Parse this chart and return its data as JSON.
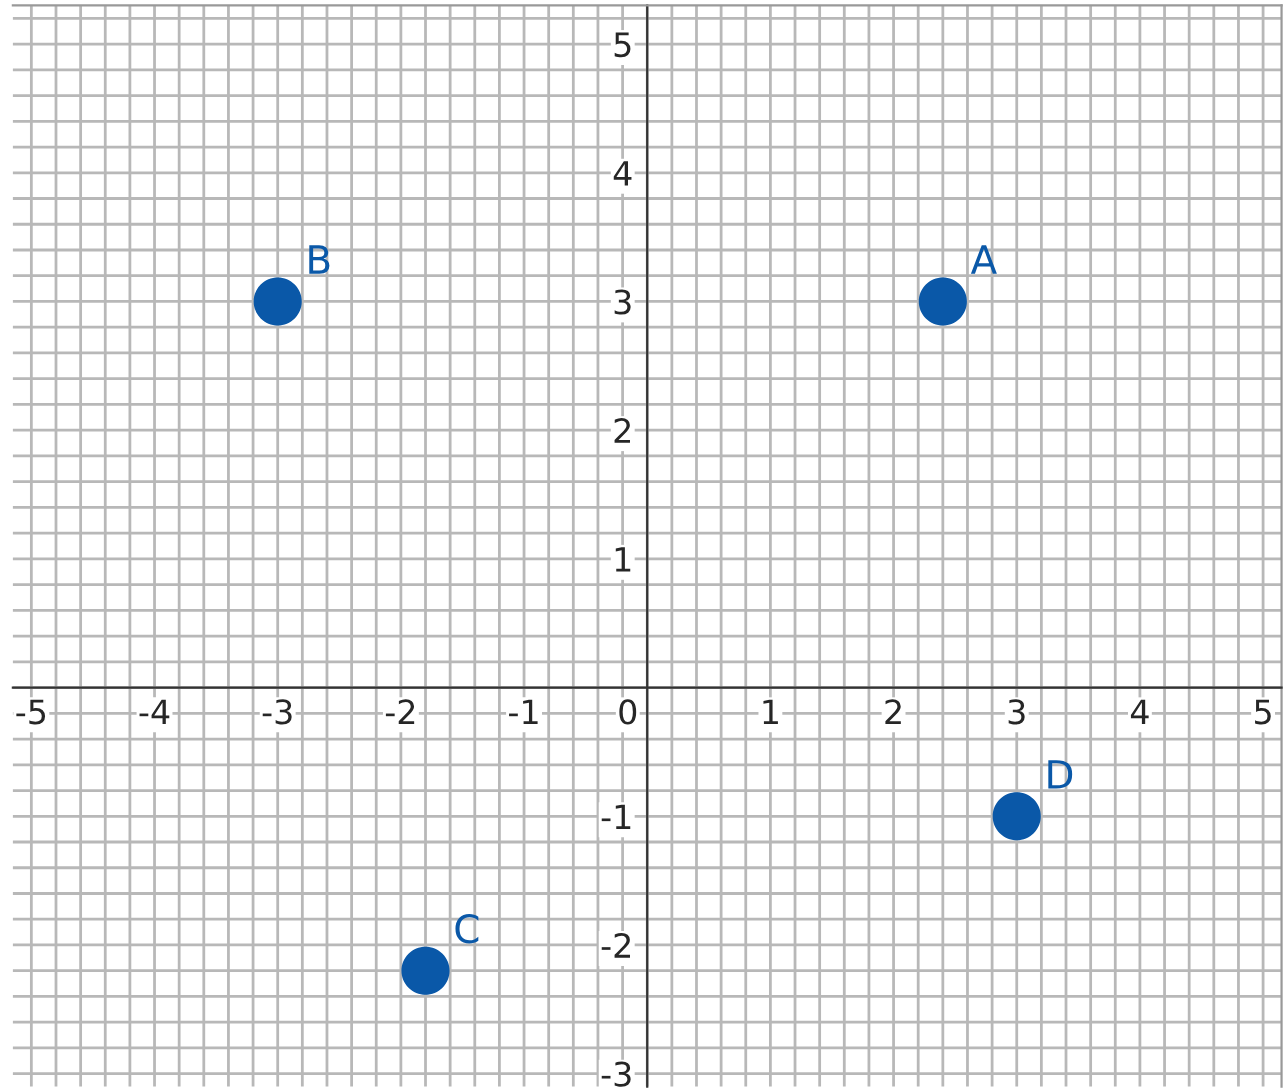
{
  "chart_data": {
    "type": "scatter",
    "x": [
      2.4,
      -3,
      -1.8,
      3
    ],
    "values": [
      3,
      3,
      -2.2,
      -1
    ],
    "color": "#0a58a8",
    "marker": "circle",
    "xlim": [
      -5.15,
      5.15
    ],
    "ylim": [
      -3.1,
      5.3
    ],
    "xticks": [
      -5,
      -4,
      -3,
      -2,
      -1,
      0,
      1,
      2,
      3,
      4,
      5
    ],
    "yticks": [
      -3,
      -2,
      -1,
      1,
      2,
      3,
      4,
      5
    ],
    "grid": true,
    "annotations": [
      {
        "text": "A",
        "x": 2.4,
        "y": 3
      },
      {
        "text": "B",
        "x": -3,
        "y": 3
      },
      {
        "text": "C",
        "x": -1.8,
        "y": -2.2
      },
      {
        "text": "D",
        "x": 3,
        "y": -1
      }
    ]
  }
}
